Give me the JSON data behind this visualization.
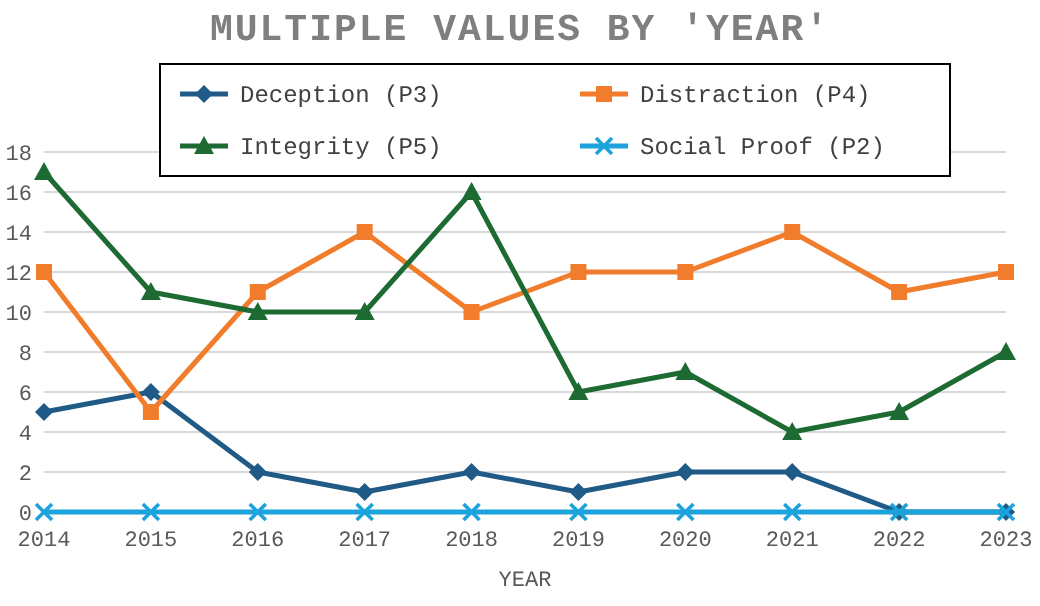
{
  "chart_data": {
    "type": "line",
    "title": "MULTIPLE VALUES BY 'YEAR'",
    "xlabel": "YEAR",
    "categories": [
      "2014",
      "2015",
      "2016",
      "2017",
      "2018",
      "2019",
      "2020",
      "2021",
      "2022",
      "2023"
    ],
    "series": [
      {
        "name": "Deception (P3)",
        "color": "#1f5b86",
        "marker": "diamond",
        "values": [
          5,
          6,
          2,
          1,
          2,
          1,
          2,
          2,
          0,
          0
        ]
      },
      {
        "name": "Distraction (P4)",
        "color": "#f07c2c",
        "marker": "square",
        "values": [
          12,
          5,
          11,
          14,
          10,
          12,
          12,
          14,
          11,
          12
        ]
      },
      {
        "name": "Integrity (P5)",
        "color": "#1d6b33",
        "marker": "triangle",
        "values": [
          17,
          11,
          10,
          10,
          16,
          6,
          7,
          4,
          5,
          8
        ]
      },
      {
        "name": "Social Proof (P2)",
        "color": "#1ca3dc",
        "marker": "cross",
        "values": [
          0,
          0,
          0,
          0,
          0,
          0,
          0,
          0,
          0,
          0
        ]
      }
    ],
    "ylim": [
      0,
      18
    ],
    "yticks": [
      0,
      2,
      4,
      6,
      8,
      10,
      12,
      14,
      16,
      18
    ],
    "grid": "y",
    "legend": "top",
    "line_style": "solid"
  }
}
